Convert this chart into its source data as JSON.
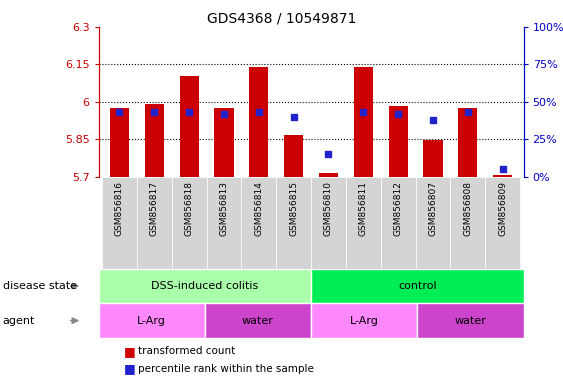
{
  "title": "GDS4368 / 10549871",
  "samples": [
    "GSM856816",
    "GSM856817",
    "GSM856818",
    "GSM856813",
    "GSM856814",
    "GSM856815",
    "GSM856810",
    "GSM856811",
    "GSM856812",
    "GSM856807",
    "GSM856808",
    "GSM856809"
  ],
  "bar_base": 5.7,
  "bar_tops": [
    5.975,
    5.99,
    6.105,
    5.975,
    6.14,
    5.865,
    5.715,
    6.14,
    5.985,
    5.845,
    5.975,
    5.705
  ],
  "percentile_pct": [
    43,
    43,
    43,
    42,
    43,
    40,
    15,
    43,
    42,
    38,
    43,
    5
  ],
  "ylim": [
    5.7,
    6.3
  ],
  "yticks": [
    5.7,
    5.85,
    6.0,
    6.15,
    6.3
  ],
  "ytick_labels": [
    "5.7",
    "5.85",
    "6",
    "6.15",
    "6.3"
  ],
  "right_yticks": [
    0,
    25,
    50,
    75,
    100
  ],
  "right_ytick_labels": [
    "0%",
    "25%",
    "50%",
    "75%",
    "100%"
  ],
  "bar_color": "#cc0000",
  "dot_color": "#2222cc",
  "disease_state_groups": [
    {
      "label": "DSS-induced colitis",
      "start": 0,
      "end": 6,
      "color": "#aaffaa"
    },
    {
      "label": "control",
      "start": 6,
      "end": 12,
      "color": "#00ee55"
    }
  ],
  "agent_groups": [
    {
      "label": "L-Arg",
      "start": 0,
      "end": 3,
      "color": "#ff88ff"
    },
    {
      "label": "water",
      "start": 3,
      "end": 6,
      "color": "#cc44cc"
    },
    {
      "label": "L-Arg",
      "start": 6,
      "end": 9,
      "color": "#ff88ff"
    },
    {
      "label": "water",
      "start": 9,
      "end": 12,
      "color": "#cc44cc"
    }
  ],
  "bg_color": "#ffffff",
  "xtick_bg": "#d4d4d4"
}
